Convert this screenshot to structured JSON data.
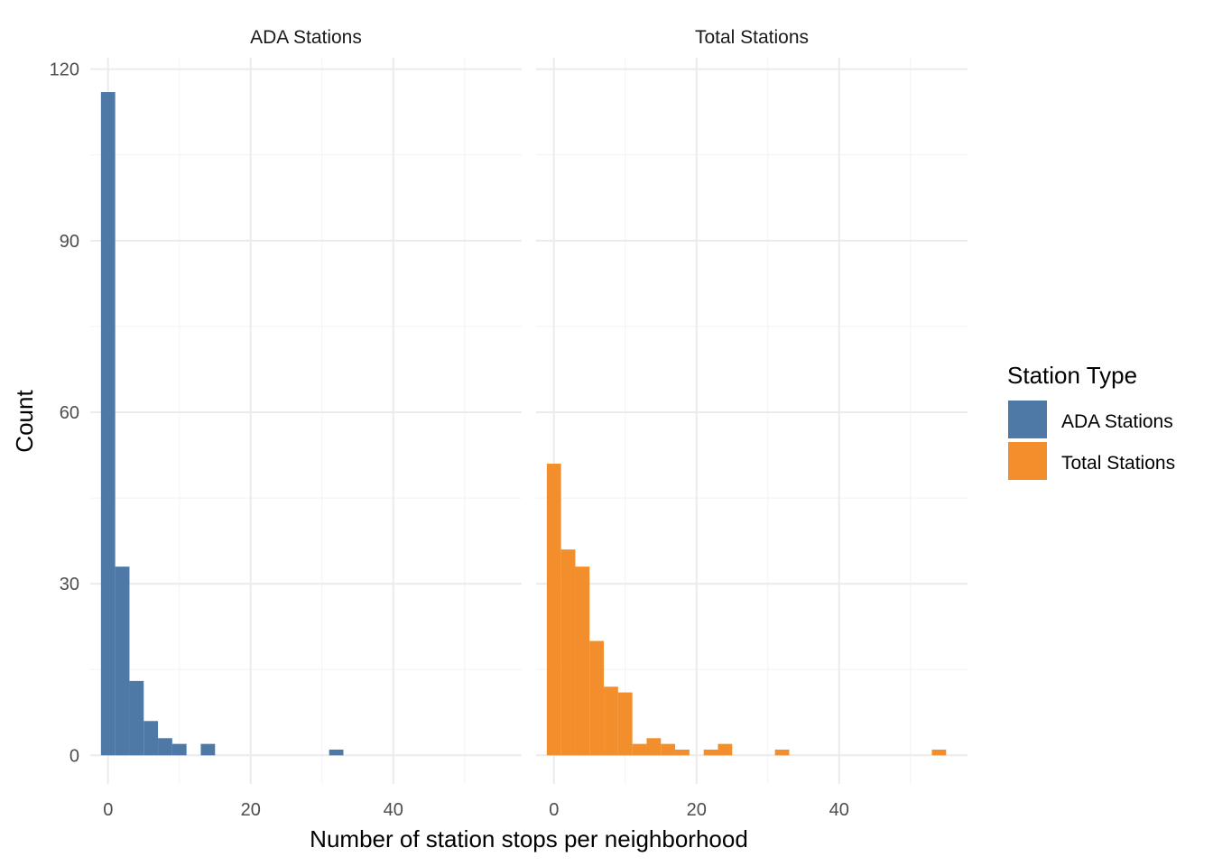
{
  "chart_data": {
    "type": "bar",
    "subtype": "histogram",
    "xlabel": "Number of station stops per neighborhood",
    "ylabel": "Count",
    "xlim": [
      -2.5,
      58
    ],
    "ylim": [
      -5,
      122
    ],
    "x_ticks": [
      0,
      20,
      40
    ],
    "y_ticks": [
      0,
      30,
      60,
      90,
      120
    ],
    "bin_width": 2,
    "grid": true,
    "legend_position": "right",
    "legend": {
      "title": "Station Type",
      "entries": [
        {
          "label": "ADA Stations",
          "color": "#4e79a7"
        },
        {
          "label": "Total Stations",
          "color": "#f28e2b"
        }
      ]
    },
    "panels": [
      {
        "name": "ADA Stations",
        "color": "#4e79a7",
        "bins": [
          {
            "x": 0,
            "count": 116
          },
          {
            "x": 2,
            "count": 33
          },
          {
            "x": 4,
            "count": 13
          },
          {
            "x": 6,
            "count": 6
          },
          {
            "x": 8,
            "count": 3
          },
          {
            "x": 10,
            "count": 2
          },
          {
            "x": 14,
            "count": 2
          },
          {
            "x": 32,
            "count": 1
          }
        ]
      },
      {
        "name": "Total Stations",
        "color": "#f28e2b",
        "bins": [
          {
            "x": 0,
            "count": 51
          },
          {
            "x": 2,
            "count": 36
          },
          {
            "x": 4,
            "count": 33
          },
          {
            "x": 6,
            "count": 20
          },
          {
            "x": 8,
            "count": 12
          },
          {
            "x": 10,
            "count": 11
          },
          {
            "x": 12,
            "count": 2
          },
          {
            "x": 14,
            "count": 3
          },
          {
            "x": 16,
            "count": 2
          },
          {
            "x": 18,
            "count": 1
          },
          {
            "x": 22,
            "count": 1
          },
          {
            "x": 24,
            "count": 2
          },
          {
            "x": 32,
            "count": 1
          },
          {
            "x": 54,
            "count": 1
          }
        ]
      }
    ]
  }
}
